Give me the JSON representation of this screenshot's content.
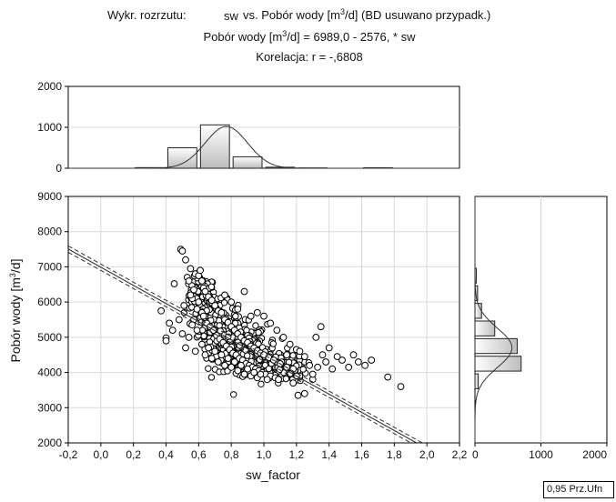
{
  "chart_data": {
    "type": "scatter",
    "title": {
      "line1": [
        "Wykr. rozrzutu:",
        "sw",
        "vs. Pobór wody [m",
        "3",
        "/d] (BD usuwano przypadk.)"
      ],
      "line2": [
        "Pobór wody [m",
        "3",
        "/d] = 6989,0 - 2576,  * sw"
      ],
      "line3": "Korelacja: r =   -,6808"
    },
    "xlabel": "sw_factor",
    "ylabel": [
      "Pobór wody [m",
      "3",
      "/d]"
    ],
    "xlim": [
      -0.2,
      2.2
    ],
    "ylim": [
      2000,
      9000
    ],
    "x_ticks": [
      "-0,2",
      "0,0",
      "0,2",
      "0,4",
      "0,6",
      "0,8",
      "1,0",
      "1,2",
      "1,4",
      "1,6",
      "1,8",
      "2,0",
      "2,2"
    ],
    "y_ticks": [
      "2000",
      "3000",
      "4000",
      "5000",
      "6000",
      "7000",
      "8000",
      "9000"
    ],
    "grid": true,
    "regression": {
      "intercept": 6989.0,
      "slope": -2576,
      "r": -0.6808
    },
    "confidence_band": "0,95 Prz.Ufn",
    "scatter_points": [
      {
        "x": 0.37,
        "y": 5750
      },
      {
        "x": 0.4,
        "y": 4980
      },
      {
        "x": 0.4,
        "y": 4900
      },
      {
        "x": 0.42,
        "y": 5400
      },
      {
        "x": 0.45,
        "y": 6520
      },
      {
        "x": 0.49,
        "y": 7500
      },
      {
        "x": 0.5,
        "y": 7450
      },
      {
        "x": 0.51,
        "y": 5900
      },
      {
        "x": 0.52,
        "y": 7200
      },
      {
        "x": 0.53,
        "y": 6700
      },
      {
        "x": 0.54,
        "y": 6600
      },
      {
        "x": 0.55,
        "y": 6950
      },
      {
        "x": 0.56,
        "y": 6100
      },
      {
        "x": 0.57,
        "y": 5500
      },
      {
        "x": 0.58,
        "y": 6800
      },
      {
        "x": 0.59,
        "y": 5200
      },
      {
        "x": 0.6,
        "y": 6750
      },
      {
        "x": 0.61,
        "y": 6900
      },
      {
        "x": 0.62,
        "y": 6600
      },
      {
        "x": 0.63,
        "y": 6400
      },
      {
        "x": 0.64,
        "y": 6300
      },
      {
        "x": 0.66,
        "y": 6150
      },
      {
        "x": 0.68,
        "y": 6050
      },
      {
        "x": 0.7,
        "y": 5900
      },
      {
        "x": 0.72,
        "y": 5750
      },
      {
        "x": 0.74,
        "y": 5700
      },
      {
        "x": 0.76,
        "y": 5500
      },
      {
        "x": 0.78,
        "y": 5420
      },
      {
        "x": 0.8,
        "y": 5300
      },
      {
        "x": 0.82,
        "y": 5200
      },
      {
        "x": 0.84,
        "y": 5100
      },
      {
        "x": 0.86,
        "y": 5000
      },
      {
        "x": 0.88,
        "y": 4900
      },
      {
        "x": 0.9,
        "y": 4850
      },
      {
        "x": 0.92,
        "y": 4750
      },
      {
        "x": 0.94,
        "y": 4700
      },
      {
        "x": 0.96,
        "y": 4620
      },
      {
        "x": 0.98,
        "y": 4550
      },
      {
        "x": 1.0,
        "y": 4500
      },
      {
        "x": 1.03,
        "y": 4420
      },
      {
        "x": 1.06,
        "y": 4350
      },
      {
        "x": 1.1,
        "y": 4250
      },
      {
        "x": 1.14,
        "y": 4150
      },
      {
        "x": 1.18,
        "y": 4100
      },
      {
        "x": 0.55,
        "y": 6200
      },
      {
        "x": 0.57,
        "y": 6350
      },
      {
        "x": 0.59,
        "y": 5800
      },
      {
        "x": 0.6,
        "y": 6000
      },
      {
        "x": 0.62,
        "y": 5700
      },
      {
        "x": 0.63,
        "y": 5600
      },
      {
        "x": 0.65,
        "y": 5400
      },
      {
        "x": 0.67,
        "y": 5300
      },
      {
        "x": 0.69,
        "y": 5200
      },
      {
        "x": 0.71,
        "y": 5050
      },
      {
        "x": 0.73,
        "y": 4950
      },
      {
        "x": 0.75,
        "y": 4850
      },
      {
        "x": 0.77,
        "y": 4750
      },
      {
        "x": 0.79,
        "y": 4650
      },
      {
        "x": 0.81,
        "y": 4550
      },
      {
        "x": 0.83,
        "y": 4500
      },
      {
        "x": 0.85,
        "y": 4400
      },
      {
        "x": 0.87,
        "y": 4350
      },
      {
        "x": 0.89,
        "y": 4250
      },
      {
        "x": 0.91,
        "y": 4200
      },
      {
        "x": 0.93,
        "y": 4150
      },
      {
        "x": 0.95,
        "y": 4100
      },
      {
        "x": 0.97,
        "y": 4050
      },
      {
        "x": 0.99,
        "y": 4000
      },
      {
        "x": 1.01,
        "y": 3950
      },
      {
        "x": 1.04,
        "y": 3900
      },
      {
        "x": 1.07,
        "y": 3850
      },
      {
        "x": 1.09,
        "y": 3800
      },
      {
        "x": 0.76,
        "y": 6200
      },
      {
        "x": 0.8,
        "y": 6000
      },
      {
        "x": 0.84,
        "y": 5800
      },
      {
        "x": 0.88,
        "y": 6300
      },
      {
        "x": 0.92,
        "y": 5600
      },
      {
        "x": 0.96,
        "y": 5700
      },
      {
        "x": 1.0,
        "y": 5600
      },
      {
        "x": 1.04,
        "y": 5400
      },
      {
        "x": 1.08,
        "y": 5200
      },
      {
        "x": 1.12,
        "y": 5000
      },
      {
        "x": 1.16,
        "y": 4800
      },
      {
        "x": 1.2,
        "y": 4650
      },
      {
        "x": 0.5,
        "y": 5100
      },
      {
        "x": 0.52,
        "y": 4700
      },
      {
        "x": 0.54,
        "y": 5000
      },
      {
        "x": 0.58,
        "y": 4600
      },
      {
        "x": 0.62,
        "y": 4800
      },
      {
        "x": 0.64,
        "y": 4500
      },
      {
        "x": 0.66,
        "y": 4700
      },
      {
        "x": 0.68,
        "y": 4400
      },
      {
        "x": 0.7,
        "y": 4600
      },
      {
        "x": 0.72,
        "y": 4300
      },
      {
        "x": 0.74,
        "y": 4500
      },
      {
        "x": 0.76,
        "y": 4200
      },
      {
        "x": 0.78,
        "y": 4400
      },
      {
        "x": 0.8,
        "y": 4150
      },
      {
        "x": 0.82,
        "y": 4300
      },
      {
        "x": 0.84,
        "y": 4050
      },
      {
        "x": 0.86,
        "y": 4200
      },
      {
        "x": 0.88,
        "y": 3950
      },
      {
        "x": 0.9,
        "y": 4100
      },
      {
        "x": 0.92,
        "y": 3900
      },
      {
        "x": 0.94,
        "y": 4000
      },
      {
        "x": 0.96,
        "y": 3850
      },
      {
        "x": 0.98,
        "y": 3950
      },
      {
        "x": 1.02,
        "y": 3800
      },
      {
        "x": 1.22,
        "y": 4600
      },
      {
        "x": 1.25,
        "y": 4450
      },
      {
        "x": 1.28,
        "y": 4200
      },
      {
        "x": 1.3,
        "y": 3800
      },
      {
        "x": 1.32,
        "y": 5000
      },
      {
        "x": 1.33,
        "y": 4150
      },
      {
        "x": 1.35,
        "y": 5300
      },
      {
        "x": 1.36,
        "y": 4500
      },
      {
        "x": 1.38,
        "y": 4300
      },
      {
        "x": 1.4,
        "y": 4700
      },
      {
        "x": 1.42,
        "y": 4100
      },
      {
        "x": 1.45,
        "y": 4450
      },
      {
        "x": 1.48,
        "y": 4350
      },
      {
        "x": 1.52,
        "y": 4150
      },
      {
        "x": 1.55,
        "y": 4500
      },
      {
        "x": 1.58,
        "y": 4300
      },
      {
        "x": 1.62,
        "y": 4200
      },
      {
        "x": 1.66,
        "y": 4350
      },
      {
        "x": 1.76,
        "y": 3870
      },
      {
        "x": 1.84,
        "y": 3600
      },
      {
        "x": 1.21,
        "y": 3350
      },
      {
        "x": 1.25,
        "y": 3400
      },
      {
        "x": 1.18,
        "y": 3700
      },
      {
        "x": 1.3,
        "y": 3950
      },
      {
        "x": 0.56,
        "y": 5350
      },
      {
        "x": 0.48,
        "y": 5500
      },
      {
        "x": 0.44,
        "y": 5200
      },
      {
        "x": 1.14,
        "y": 4500
      }
    ],
    "dense_cloud": {
      "description_free_params": true,
      "centers": [
        {
          "x": 0.62,
          "y": 6200,
          "sx": 0.04,
          "sy": 250,
          "n": 120
        },
        {
          "x": 0.72,
          "y": 5300,
          "sx": 0.06,
          "sy": 350,
          "n": 200
        },
        {
          "x": 0.86,
          "y": 4700,
          "sx": 0.08,
          "sy": 330,
          "n": 260
        },
        {
          "x": 1.0,
          "y": 4300,
          "sx": 0.09,
          "sy": 220,
          "n": 200
        },
        {
          "x": 1.12,
          "y": 4100,
          "sx": 0.07,
          "sy": 180,
          "n": 100
        }
      ]
    },
    "x_histogram": {
      "ylim": [
        0,
        2000
      ],
      "y_ticks": [
        "0",
        "1000",
        "2000"
      ],
      "bins": [
        {
          "x0": -0.2,
          "x1": 0.0,
          "count": 0
        },
        {
          "x0": 0.0,
          "x1": 0.2,
          "count": 0
        },
        {
          "x0": 0.2,
          "x1": 0.4,
          "count": 15
        },
        {
          "x0": 0.4,
          "x1": 0.6,
          "count": 500
        },
        {
          "x0": 0.6,
          "x1": 0.8,
          "count": 1060
        },
        {
          "x0": 0.8,
          "x1": 1.0,
          "count": 280
        },
        {
          "x0": 1.0,
          "x1": 1.2,
          "count": 25
        },
        {
          "x0": 1.2,
          "x1": 1.4,
          "count": 8
        },
        {
          "x0": 1.4,
          "x1": 1.6,
          "count": 0
        },
        {
          "x0": 1.6,
          "x1": 1.8,
          "count": 12
        },
        {
          "x0": 1.8,
          "x1": 2.0,
          "count": 0
        },
        {
          "x0": 2.0,
          "x1": 2.2,
          "count": 0
        }
      ]
    },
    "y_histogram": {
      "xlim": [
        0,
        2000
      ],
      "x_ticks": [
        "0",
        "1000",
        "2000"
      ],
      "bins": [
        {
          "y0": 3500,
          "y1": 4000,
          "count": 50
        },
        {
          "y0": 4000,
          "y1": 4500,
          "count": 700
        },
        {
          "y0": 4500,
          "y1": 5000,
          "count": 640
        },
        {
          "y0": 5000,
          "y1": 5500,
          "count": 300
        },
        {
          "y0": 5500,
          "y1": 6000,
          "count": 100
        },
        {
          "y0": 6000,
          "y1": 6500,
          "count": 40
        },
        {
          "y0": 6500,
          "y1": 7000,
          "count": 20
        }
      ]
    }
  }
}
